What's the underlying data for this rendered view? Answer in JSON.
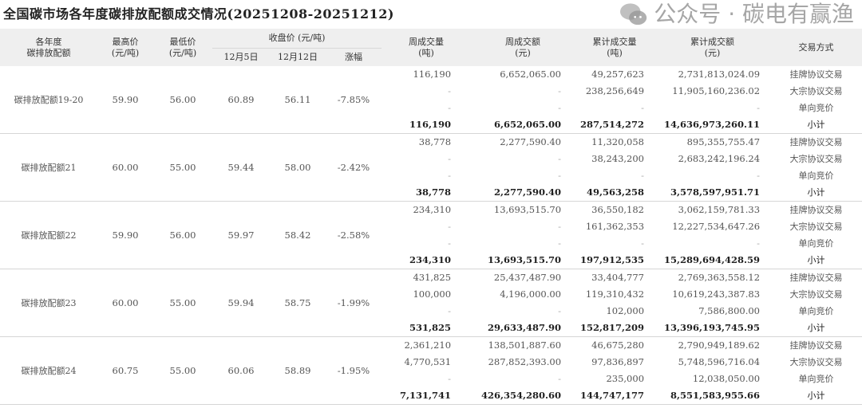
{
  "title": "全国碳市场各年度碳排放配额成交情况(20251208-20251212)",
  "headers": {
    "vintage": [
      "各年度",
      "碳排放配额"
    ],
    "high": [
      "最高价",
      "(元/吨)"
    ],
    "low": [
      "最低价",
      "(元/吨)"
    ],
    "close": "收盘价 (元/吨)",
    "close_prev": "12月5日",
    "close_curr": "12月12日",
    "change": "涨幅",
    "week_vol": [
      "周成交量",
      "(吨)"
    ],
    "week_amt": [
      "周成交额",
      "(元)"
    ],
    "cum_vol": [
      "累计成交量",
      "(吨)"
    ],
    "cum_amt": [
      "累计成交额",
      "(元)"
    ],
    "method": "交易方式"
  },
  "groups": [
    {
      "name": "碳排放配额19-20",
      "high": "59.90",
      "low": "56.00",
      "close_prev": "60.89",
      "close_curr": "56.11",
      "change": "-7.85%",
      "rows": [
        [
          "116,190",
          "6,652,065.00",
          "49,257,623",
          "2,731,813,024.09",
          "挂牌协议交易"
        ],
        [
          "-",
          "-",
          "238,256,649",
          "11,905,160,236.02",
          "大宗协议交易"
        ],
        [
          "-",
          "-",
          "-",
          "-",
          "单向竞价"
        ],
        [
          "116,190",
          "6,652,065.00",
          "287,514,272",
          "14,636,973,260.11",
          "小计"
        ]
      ]
    },
    {
      "name": "碳排放配额21",
      "high": "60.00",
      "low": "55.00",
      "close_prev": "59.44",
      "close_curr": "58.00",
      "change": "-2.42%",
      "rows": [
        [
          "38,778",
          "2,277,590.40",
          "11,320,058",
          "895,355,755.47",
          "挂牌协议交易"
        ],
        [
          "-",
          "-",
          "38,243,200",
          "2,683,242,196.24",
          "大宗协议交易"
        ],
        [
          "-",
          "-",
          "-",
          "-",
          "单向竞价"
        ],
        [
          "38,778",
          "2,277,590.40",
          "49,563,258",
          "3,578,597,951.71",
          "小计"
        ]
      ]
    },
    {
      "name": "碳排放配额22",
      "high": "59.90",
      "low": "56.00",
      "close_prev": "59.97",
      "close_curr": "58.42",
      "change": "-2.58%",
      "rows": [
        [
          "234,310",
          "13,693,515.70",
          "36,550,182",
          "3,062,159,781.33",
          "挂牌协议交易"
        ],
        [
          "-",
          "-",
          "161,362,353",
          "12,227,534,647.26",
          "大宗协议交易"
        ],
        [
          "-",
          "-",
          "-",
          "-",
          "单向竞价"
        ],
        [
          "234,310",
          "13,693,515.70",
          "197,912,535",
          "15,289,694,428.59",
          "小计"
        ]
      ]
    },
    {
      "name": "碳排放配额23",
      "high": "60.00",
      "low": "55.00",
      "close_prev": "59.94",
      "close_curr": "58.75",
      "change": "-1.99%",
      "rows": [
        [
          "431,825",
          "25,437,487.90",
          "33,404,777",
          "2,769,363,558.12",
          "挂牌协议交易"
        ],
        [
          "100,000",
          "4,196,000.00",
          "119,310,432",
          "10,619,243,387.83",
          "大宗协议交易"
        ],
        [
          "-",
          "-",
          "102,000",
          "7,586,800.00",
          "单向竞价"
        ],
        [
          "531,825",
          "29,633,487.90",
          "152,817,209",
          "13,396,193,745.95",
          "小计"
        ]
      ]
    },
    {
      "name": "碳排放配额24",
      "high": "60.75",
      "low": "55.00",
      "close_prev": "60.06",
      "close_curr": "58.89",
      "change": "-1.95%",
      "rows": [
        [
          "2,361,210",
          "138,501,887.60",
          "46,675,280",
          "2,790,949,189.62",
          "挂牌协议交易"
        ],
        [
          "4,770,531",
          "287,852,393.00",
          "97,836,897",
          "5,748,596,716.04",
          "大宗协议交易"
        ],
        [
          "-",
          "-",
          "235,000",
          "12,038,050.00",
          "单向竞价"
        ],
        [
          "7,131,741",
          "426,354,280.60",
          "144,747,177",
          "8,551,583,955.66",
          "小计"
        ]
      ]
    }
  ],
  "watermark": "公众号 · 碳电有赢渔"
}
